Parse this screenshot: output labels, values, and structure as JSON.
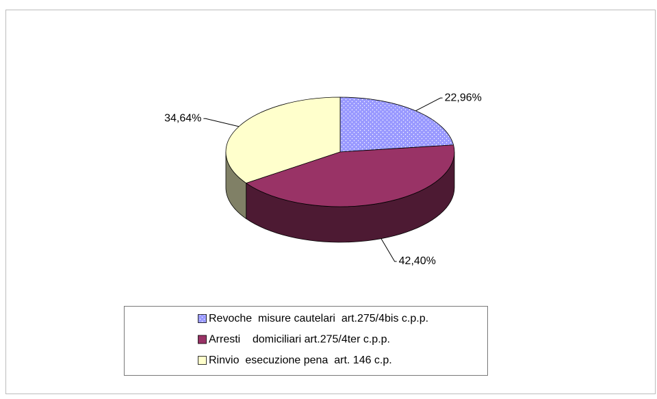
{
  "chart_data": {
    "type": "pie",
    "categories": [
      "Revoche  misure cautelari  art.275/4bis c.p.p.",
      "Arresti    domiciliari art.275/4ter c.p.p.",
      "Rinvio  esecuzione pena  art. 146 c.p."
    ],
    "values": [
      22.96,
      42.4,
      34.64
    ],
    "value_labels": [
      "22,96%",
      "42,40%",
      "34,64%"
    ],
    "colors": [
      "#9999ff",
      "#993366",
      "#ffffcc"
    ],
    "legend": "bottom"
  }
}
